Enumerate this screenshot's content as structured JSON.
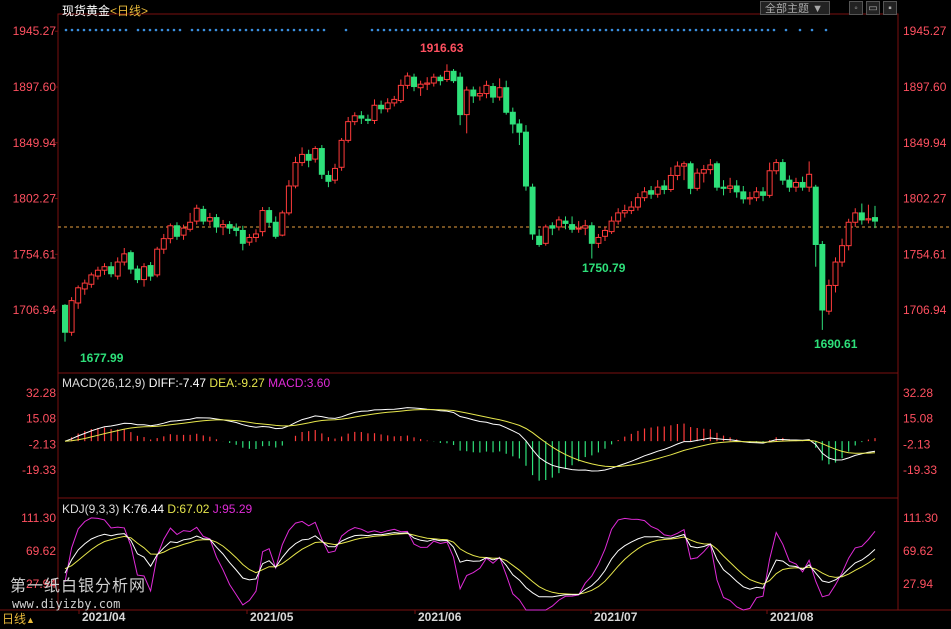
{
  "header": {
    "instrument": "现货黄金",
    "period_open": "<",
    "period": "日线",
    "period_close": ">",
    "theme_button": "全部主题",
    "theme_dropdown_icon": "▼",
    "win_buttons": [
      "◦",
      "▭",
      "▪"
    ]
  },
  "price_axis": [
    "1945.27",
    "1897.60",
    "1849.94",
    "1802.27",
    "1754.61",
    "1706.94"
  ],
  "annotations": {
    "high": "1916.63",
    "low1": "1677.99",
    "low2": "1750.79",
    "low3": "1690.61"
  },
  "macd": {
    "name": "MACD(26,12,9)",
    "diff": "DIFF:-7.47",
    "dea": "DEA:-9.27",
    "macd": "MACD:3.60",
    "axis": [
      "32.28",
      "15.08",
      "-2.13",
      "-19.33"
    ]
  },
  "kdj": {
    "name": "KDJ(9,3,3)",
    "k": "K:76.44",
    "d": "D:67.02",
    "j": "J:95.29",
    "axis": [
      "111.30",
      "69.62",
      "27.94"
    ]
  },
  "x_axis": [
    "2021/04",
    "2021/05",
    "2021/06",
    "2021/07",
    "2021/08"
  ],
  "timeframe": {
    "label": "日线",
    "icon": "▲"
  },
  "watermark": {
    "line1": "第一纸白银分析网",
    "line2": "www.diyizby.com"
  },
  "colors": {
    "up": "#ff3b3b",
    "down": "#2ee07a",
    "dif": "#ffffff",
    "dea": "#e6e64c",
    "j": "#e02bd8",
    "axis": "#ff5060",
    "current": "#e8a040"
  },
  "chart_data": {
    "type": "candlestick",
    "title": "现货黄金 日线",
    "ylim": [
      1660,
      1960
    ],
    "current_price": 1778,
    "candles": [
      [
        1711,
        1688,
        1712,
        1680
      ],
      [
        1688,
        1715,
        1718,
        1685
      ],
      [
        1713,
        1726,
        1728,
        1708
      ],
      [
        1725,
        1730,
        1733,
        1720
      ],
      [
        1729,
        1737,
        1739,
        1726
      ],
      [
        1736,
        1741,
        1744,
        1733
      ],
      [
        1741,
        1744,
        1747,
        1737
      ],
      [
        1744,
        1738,
        1748,
        1735
      ],
      [
        1736,
        1748,
        1752,
        1733
      ],
      [
        1748,
        1755,
        1760,
        1745
      ],
      [
        1756,
        1742,
        1758,
        1738
      ],
      [
        1742,
        1733,
        1745,
        1730
      ],
      [
        1733,
        1744,
        1747,
        1727
      ],
      [
        1745,
        1736,
        1748,
        1732
      ],
      [
        1737,
        1759,
        1761,
        1735
      ],
      [
        1759,
        1768,
        1772,
        1755
      ],
      [
        1768,
        1779,
        1781,
        1764
      ],
      [
        1779,
        1770,
        1782,
        1767
      ],
      [
        1771,
        1777,
        1780,
        1767
      ],
      [
        1776,
        1782,
        1790,
        1774
      ],
      [
        1783,
        1794,
        1797,
        1780
      ],
      [
        1793,
        1783,
        1796,
        1780
      ],
      [
        1783,
        1786,
        1790,
        1779
      ],
      [
        1786,
        1778,
        1789,
        1773
      ],
      [
        1778,
        1780,
        1784,
        1771
      ],
      [
        1780,
        1777,
        1783,
        1772
      ],
      [
        1777,
        1775,
        1781,
        1770
      ],
      [
        1775,
        1764,
        1779,
        1758
      ],
      [
        1765,
        1769,
        1772,
        1762
      ],
      [
        1769,
        1772,
        1776,
        1765
      ],
      [
        1774,
        1792,
        1795,
        1770
      ],
      [
        1792,
        1782,
        1795,
        1778
      ],
      [
        1782,
        1770,
        1787,
        1768
      ],
      [
        1771,
        1790,
        1792,
        1770
      ],
      [
        1790,
        1813,
        1818,
        1788
      ],
      [
        1813,
        1833,
        1838,
        1811
      ],
      [
        1833,
        1840,
        1846,
        1830
      ],
      [
        1840,
        1835,
        1844,
        1829
      ],
      [
        1836,
        1845,
        1847,
        1833
      ],
      [
        1845,
        1823,
        1848,
        1819
      ],
      [
        1822,
        1817,
        1826,
        1812
      ],
      [
        1818,
        1828,
        1832,
        1815
      ],
      [
        1829,
        1852,
        1854,
        1826
      ],
      [
        1852,
        1868,
        1872,
        1850
      ],
      [
        1868,
        1873,
        1876,
        1865
      ],
      [
        1873,
        1871,
        1877,
        1866
      ],
      [
        1870,
        1869,
        1874,
        1866
      ],
      [
        1869,
        1882,
        1887,
        1866
      ],
      [
        1882,
        1879,
        1886,
        1875
      ],
      [
        1879,
        1884,
        1888,
        1876
      ],
      [
        1884,
        1887,
        1890,
        1881
      ],
      [
        1886,
        1899,
        1904,
        1884
      ],
      [
        1899,
        1907,
        1910,
        1896
      ],
      [
        1906,
        1898,
        1909,
        1894
      ],
      [
        1897,
        1900,
        1903,
        1890
      ],
      [
        1900,
        1901,
        1906,
        1895
      ],
      [
        1901,
        1906,
        1909,
        1898
      ],
      [
        1906,
        1903,
        1908,
        1899
      ],
      [
        1904,
        1911,
        1917,
        1902
      ],
      [
        1911,
        1903,
        1913,
        1901
      ],
      [
        1906,
        1874,
        1910,
        1865
      ],
      [
        1874,
        1895,
        1898,
        1858
      ],
      [
        1895,
        1890,
        1898,
        1884
      ],
      [
        1890,
        1892,
        1898,
        1886
      ],
      [
        1892,
        1899,
        1903,
        1888
      ],
      [
        1898,
        1889,
        1901,
        1884
      ],
      [
        1889,
        1897,
        1905,
        1886
      ],
      [
        1897,
        1876,
        1903,
        1874
      ],
      [
        1876,
        1866,
        1880,
        1858
      ],
      [
        1866,
        1859,
        1870,
        1848
      ],
      [
        1859,
        1813,
        1865,
        1809
      ],
      [
        1812,
        1772,
        1815,
        1767
      ],
      [
        1770,
        1763,
        1776,
        1761
      ],
      [
        1764,
        1778,
        1780,
        1762
      ],
      [
        1779,
        1777,
        1782,
        1771
      ],
      [
        1778,
        1784,
        1787,
        1775
      ],
      [
        1783,
        1781,
        1787,
        1776
      ],
      [
        1780,
        1776,
        1787,
        1773
      ],
      [
        1777,
        1777,
        1783,
        1773
      ],
      [
        1777,
        1779,
        1784,
        1771
      ],
      [
        1779,
        1764,
        1782,
        1751
      ],
      [
        1764,
        1769,
        1772,
        1760
      ],
      [
        1770,
        1775,
        1778,
        1766
      ],
      [
        1774,
        1783,
        1787,
        1772
      ],
      [
        1783,
        1790,
        1794,
        1780
      ],
      [
        1790,
        1792,
        1797,
        1786
      ],
      [
        1792,
        1795,
        1800,
        1789
      ],
      [
        1795,
        1803,
        1807,
        1792
      ],
      [
        1803,
        1808,
        1812,
        1800
      ],
      [
        1809,
        1806,
        1813,
        1802
      ],
      [
        1806,
        1812,
        1818,
        1803
      ],
      [
        1813,
        1810,
        1818,
        1806
      ],
      [
        1810,
        1822,
        1829,
        1808
      ],
      [
        1822,
        1830,
        1834,
        1818
      ],
      [
        1830,
        1832,
        1834,
        1818
      ],
      [
        1832,
        1811,
        1834,
        1806
      ],
      [
        1811,
        1824,
        1828,
        1809
      ],
      [
        1824,
        1827,
        1831,
        1816
      ],
      [
        1827,
        1831,
        1836,
        1823
      ],
      [
        1832,
        1812,
        1834,
        1809
      ],
      [
        1812,
        1811,
        1818,
        1805
      ],
      [
        1811,
        1813,
        1820,
        1807
      ],
      [
        1813,
        1808,
        1818,
        1803
      ],
      [
        1808,
        1802,
        1813,
        1798
      ],
      [
        1802,
        1803,
        1808,
        1797
      ],
      [
        1803,
        1808,
        1812,
        1800
      ],
      [
        1808,
        1805,
        1812,
        1800
      ],
      [
        1805,
        1826,
        1833,
        1803
      ],
      [
        1826,
        1833,
        1836,
        1823
      ],
      [
        1833,
        1818,
        1836,
        1814
      ],
      [
        1818,
        1812,
        1822,
        1808
      ],
      [
        1812,
        1816,
        1820,
        1808
      ],
      [
        1816,
        1812,
        1821,
        1809
      ],
      [
        1812,
        1823,
        1834,
        1808
      ],
      [
        1812,
        1763,
        1814,
        1744
      ],
      [
        1763,
        1707,
        1766,
        1690
      ],
      [
        1706,
        1728,
        1733,
        1703
      ],
      [
        1728,
        1748,
        1752,
        1722
      ],
      [
        1748,
        1762,
        1768,
        1744
      ],
      [
        1762,
        1782,
        1785,
        1758
      ],
      [
        1782,
        1790,
        1794,
        1778
      ],
      [
        1790,
        1784,
        1798,
        1780
      ],
      [
        1784,
        1785,
        1797,
        1781
      ],
      [
        1786,
        1783,
        1796,
        1777
      ]
    ]
  }
}
